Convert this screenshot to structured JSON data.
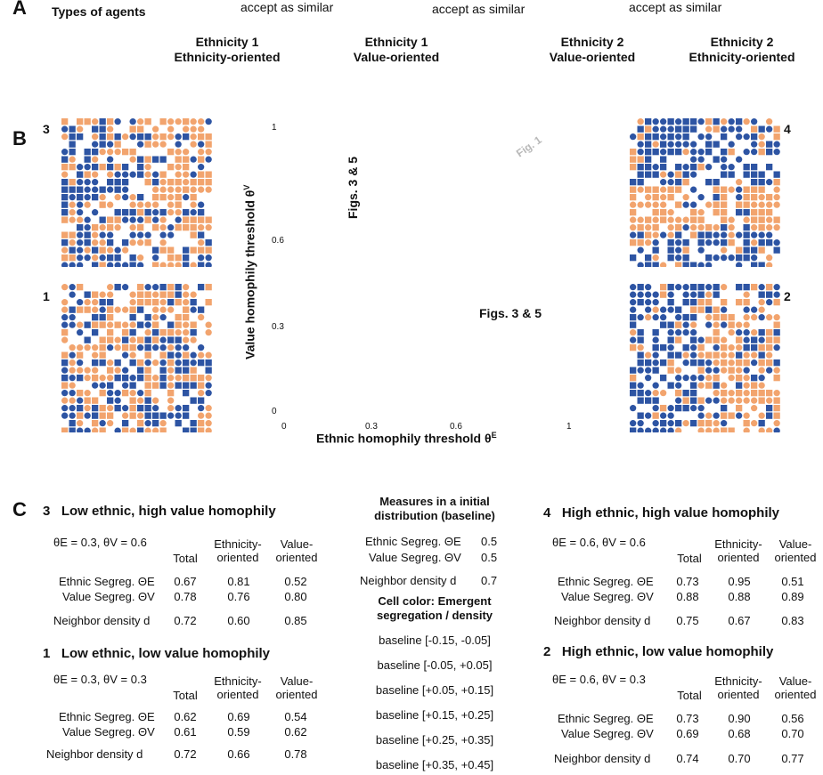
{
  "panelA": {
    "letter": "A",
    "title": "Types of agents",
    "accept1": "accept as similar",
    "accept2": "accept as similar",
    "accept3": "accept as similar",
    "agents": [
      {
        "line1": "Ethnicity 1",
        "line2": "Ethnicity-oriented"
      },
      {
        "line1": "Ethnicity 1",
        "line2": "Value-oriented"
      },
      {
        "line1": "Ethnicity 2",
        "line2": "Value-oriented"
      },
      {
        "line1": "Ethnicity 2",
        "line2": "Ethnicity-oriented"
      }
    ]
  },
  "panelB": {
    "letter": "B",
    "grid_labels": {
      "tl": "3",
      "bl": "1",
      "tr": "4",
      "br": "2"
    },
    "ylabel": "Value homophily threshold θ",
    "ylabel_sup": "V",
    "xlabel": "Ethnic homophily threshold θ",
    "xlabel_sup": "E",
    "y_ticks": [
      "1",
      "0.6",
      "0.3",
      "0"
    ],
    "x_ticks": [
      "0",
      "0.3",
      "0.6",
      "1"
    ],
    "annot_figs35_vertical": "Figs. 3 & 5",
    "annot_figs35": "Figs. 3 & 5",
    "annot_fig1": "Fig. 1",
    "colors": {
      "ethnicity1": "#f2a46e",
      "ethnicity2": "#2d54a3"
    }
  },
  "panelC": {
    "letter": "C",
    "tables": [
      {
        "id": "3",
        "title": "3   Low ethnic, high value homophily",
        "params": "θE = 0.3, θV = 0.6",
        "cols": [
          "Total",
          "Ethnicity-\noriented",
          "Value-\noriented"
        ],
        "rows": [
          {
            "label": "Ethnic Segreg. ΘE",
            "vals": [
              "0.67",
              "0.81",
              "0.52"
            ]
          },
          {
            "label": "Value Segreg. ΘV",
            "vals": [
              "0.78",
              "0.76",
              "0.80"
            ]
          },
          {
            "label": "Neighbor density d",
            "vals": [
              "0.72",
              "0.60",
              "0.85"
            ]
          }
        ]
      },
      {
        "id": "1",
        "title": "1   Low ethnic, low value homophily",
        "params": "θE = 0.3, θV = 0.3",
        "cols": [
          "Total",
          "Ethnicity-\noriented",
          "Value-\noriented"
        ],
        "rows": [
          {
            "label": "Ethnic Segreg. ΘE",
            "vals": [
              "0.62",
              "0.69",
              "0.54"
            ]
          },
          {
            "label": "Value Segreg. ΘV",
            "vals": [
              "0.61",
              "0.59",
              "0.62"
            ]
          },
          {
            "label": "Neighbor density d",
            "vals": [
              "0.72",
              "0.66",
              "0.78"
            ]
          }
        ]
      },
      {
        "id": "4",
        "title": "4   High ethnic, high value homophily",
        "params": "θE = 0.6, θV = 0.6",
        "cols": [
          "Total",
          "Ethnicity-\noriented",
          "Value-\noriented"
        ],
        "rows": [
          {
            "label": "Ethnic Segreg. ΘE",
            "vals": [
              "0.73",
              "0.95",
              "0.51"
            ]
          },
          {
            "label": "Value Segreg. ΘV",
            "vals": [
              "0.88",
              "0.88",
              "0.89"
            ]
          },
          {
            "label": "Neighbor density d",
            "vals": [
              "0.75",
              "0.67",
              "0.83"
            ]
          }
        ]
      },
      {
        "id": "2",
        "title": "2   High ethnic, low value homophily",
        "params": "θE = 0.6, θV = 0.3",
        "cols": [
          "Total",
          "Ethnicity-\noriented",
          "Value-\noriented"
        ],
        "rows": [
          {
            "label": "Ethnic Segreg. ΘE",
            "vals": [
              "0.73",
              "0.90",
              "0.56"
            ]
          },
          {
            "label": "Value Segreg. ΘV",
            "vals": [
              "0.69",
              "0.68",
              "0.70"
            ]
          },
          {
            "label": "Neighbor density d",
            "vals": [
              "0.74",
              "0.70",
              "0.77"
            ]
          }
        ]
      }
    ],
    "baseline": {
      "title1": "Measures in a initial",
      "title2": "distribution (baseline)",
      "rows": [
        {
          "label": "Ethnic Segreg. ΘE",
          "val": "0.5"
        },
        {
          "label": "Value Segreg. ΘV",
          "val": "0.5"
        },
        {
          "label": "Neighbor density d",
          "val": "0.7"
        }
      ],
      "legend_title1": "Cell color: Emergent",
      "legend_title2": "segregation / density",
      "legend": [
        "baseline [-0.15, -0.05]",
        "baseline [-0.05, +0.05]",
        "baseline [+0.05, +0.15]",
        "baseline [+0.15, +0.25]",
        "baseline [+0.25, +0.35]",
        "baseline [+0.35, +0.45]"
      ]
    }
  }
}
